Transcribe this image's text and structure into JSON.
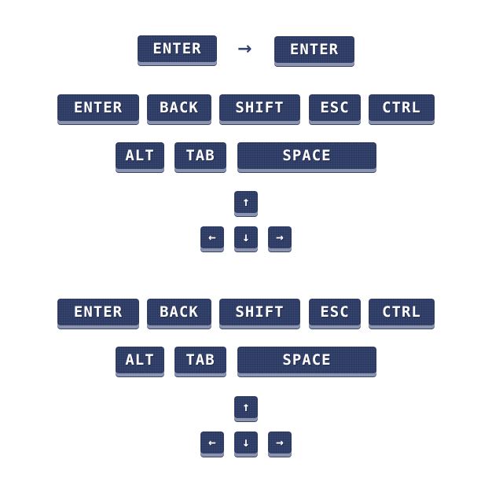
{
  "colors": {
    "key_face": "#35446f",
    "key_shadow": "#8b93ad",
    "key_text": "#ffffff",
    "background": "#ffffff"
  },
  "transform_row": {
    "from_label": "ENTER",
    "separator": "→",
    "to_label": "ENTER"
  },
  "set1": {
    "row1": [
      "ENTER",
      "BACK",
      "SHIFT",
      "ESC",
      "CTRL"
    ],
    "row2": [
      "ALT",
      "TAB",
      "SPACE"
    ],
    "arrows": {
      "up": "↑",
      "left": "←",
      "down": "↓",
      "right": "→"
    }
  },
  "set2": {
    "row1": [
      "ENTER",
      "BACK",
      "SHIFT",
      "ESC",
      "CTRL"
    ],
    "row2": [
      "ALT",
      "TAB",
      "SPACE"
    ],
    "arrows": {
      "up": "↑",
      "left": "←",
      "down": "↓",
      "right": "→"
    }
  }
}
